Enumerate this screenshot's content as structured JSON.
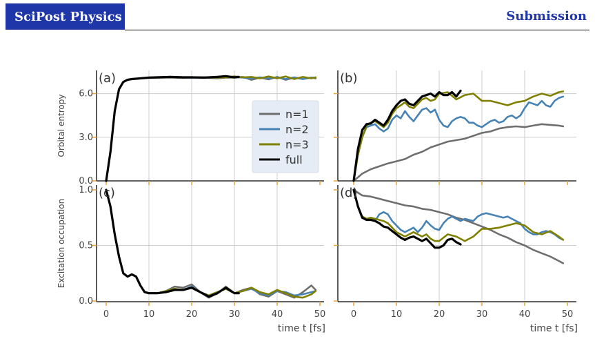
{
  "header": {
    "journal": "SciPost Physics",
    "section": "Submission"
  },
  "colors": {
    "n1": "#6e6e6e",
    "n2": "#4682b4",
    "n3": "#808000",
    "full": "#000000"
  },
  "chart_data": [
    {
      "panel": "(a)",
      "type": "line",
      "ylabel": "Orbital entropy",
      "ylim": [
        0,
        7.5
      ],
      "yticks": [
        "0.0",
        "3.0",
        "6.0"
      ],
      "xlim": [
        0,
        50
      ],
      "series": [
        {
          "name": "n=1",
          "x": [
            0,
            1,
            2,
            3,
            4,
            5,
            6,
            8,
            10,
            12,
            15,
            18,
            20,
            23,
            26,
            28,
            30,
            32,
            34,
            36,
            38,
            40,
            42,
            44,
            46,
            48,
            49
          ],
          "y": [
            0,
            2,
            4.8,
            6.3,
            6.8,
            6.95,
            7.0,
            7.05,
            7.08,
            7.1,
            7.1,
            7.08,
            7.1,
            7.1,
            7.05,
            7.1,
            7.1,
            7.15,
            6.95,
            7.1,
            6.98,
            7.15,
            6.95,
            7.1,
            7.0,
            7.1,
            7.05
          ]
        },
        {
          "name": "n=2",
          "x": [
            0,
            1,
            2,
            3,
            4,
            5,
            6,
            8,
            10,
            12,
            15,
            18,
            20,
            23,
            26,
            28,
            30,
            32,
            34,
            36,
            38,
            40,
            42,
            44,
            46,
            48,
            49
          ],
          "y": [
            0,
            2,
            4.8,
            6.3,
            6.8,
            6.95,
            7.0,
            7.05,
            7.1,
            7.1,
            7.12,
            7.1,
            7.1,
            7.12,
            7.1,
            7.12,
            7.15,
            7.1,
            7.05,
            7.12,
            7.05,
            7.12,
            7.0,
            7.12,
            7.0,
            7.1,
            7.1
          ]
        },
        {
          "name": "n=3",
          "x": [
            0,
            1,
            2,
            3,
            4,
            5,
            6,
            8,
            10,
            12,
            15,
            18,
            20,
            23,
            26,
            28,
            30,
            32,
            34,
            36,
            38,
            40,
            42,
            44,
            46,
            48,
            49
          ],
          "y": [
            0,
            2,
            4.8,
            6.3,
            6.8,
            6.95,
            7.0,
            7.05,
            7.1,
            7.1,
            7.12,
            7.1,
            7.12,
            7.12,
            7.1,
            7.12,
            7.18,
            7.12,
            7.15,
            7.05,
            7.18,
            7.05,
            7.18,
            7.0,
            7.15,
            7.05,
            7.12
          ]
        },
        {
          "name": "full",
          "x": [
            0,
            1,
            2,
            3,
            4,
            5,
            6,
            8,
            10,
            12,
            15,
            18,
            20,
            23,
            26,
            28,
            30,
            31
          ],
          "y": [
            0,
            2,
            4.8,
            6.3,
            6.8,
            6.95,
            7.0,
            7.05,
            7.1,
            7.12,
            7.15,
            7.12,
            7.12,
            7.1,
            7.15,
            7.2,
            7.12,
            7.15
          ]
        }
      ]
    },
    {
      "panel": "(b)",
      "type": "line",
      "ylim": [
        0,
        7.5
      ],
      "xlim": [
        0,
        50
      ],
      "series": [
        {
          "name": "n=1",
          "x": [
            0,
            2,
            4,
            6,
            8,
            10,
            12,
            14,
            16,
            18,
            20,
            22,
            24,
            26,
            28,
            30,
            32,
            34,
            36,
            38,
            40,
            42,
            44,
            46,
            48,
            49
          ],
          "y": [
            0,
            0.5,
            0.8,
            1.0,
            1.2,
            1.35,
            1.5,
            1.8,
            2.0,
            2.3,
            2.5,
            2.7,
            2.8,
            2.9,
            3.1,
            3.3,
            3.4,
            3.6,
            3.7,
            3.75,
            3.7,
            3.8,
            3.9,
            3.85,
            3.8,
            3.75
          ]
        },
        {
          "name": "n=2",
          "x": [
            0,
            1,
            2,
            3,
            4,
            5,
            6,
            7,
            8,
            9,
            10,
            11,
            12,
            13,
            14,
            15,
            16,
            17,
            18,
            19,
            20,
            21,
            22,
            23,
            24,
            25,
            26,
            27,
            28,
            29,
            30,
            31,
            32,
            33,
            34,
            35,
            36,
            37,
            38,
            39,
            40,
            41,
            42,
            43,
            44,
            45,
            46,
            47,
            48,
            49
          ],
          "y": [
            0,
            1.8,
            3.0,
            3.7,
            3.8,
            3.9,
            3.6,
            3.4,
            3.6,
            4.2,
            4.5,
            4.3,
            4.8,
            4.4,
            4.1,
            4.5,
            4.9,
            5.0,
            4.7,
            4.9,
            4.2,
            3.8,
            3.7,
            4.1,
            4.3,
            4.4,
            4.3,
            4.0,
            4.0,
            3.8,
            3.7,
            3.9,
            4.1,
            4.2,
            4.0,
            4.1,
            4.4,
            4.5,
            4.3,
            4.5,
            5.0,
            5.4,
            5.3,
            5.2,
            5.5,
            5.2,
            5.1,
            5.5,
            5.7,
            5.8
          ]
        },
        {
          "name": "n=3",
          "x": [
            0,
            1,
            2,
            3,
            4,
            5,
            6,
            7,
            8,
            9,
            10,
            11,
            12,
            13,
            14,
            15,
            16,
            17,
            18,
            19,
            20,
            22,
            24,
            26,
            28,
            30,
            32,
            34,
            36,
            38,
            40,
            42,
            44,
            46,
            48,
            49
          ],
          "y": [
            0,
            1.8,
            3.0,
            3.8,
            4.0,
            4.1,
            3.9,
            3.7,
            4.0,
            4.6,
            5.0,
            5.2,
            5.4,
            5.1,
            5.0,
            5.3,
            5.6,
            5.7,
            5.5,
            5.6,
            6.0,
            6.1,
            5.6,
            5.9,
            6.0,
            5.5,
            5.5,
            5.35,
            5.2,
            5.4,
            5.5,
            5.8,
            6.0,
            5.85,
            6.1,
            6.15
          ]
        },
        {
          "name": "full",
          "x": [
            0,
            1,
            2,
            3,
            4,
            5,
            6,
            7,
            8,
            9,
            10,
            11,
            12,
            13,
            14,
            15,
            16,
            17,
            18,
            19,
            20,
            21,
            22,
            23,
            24,
            25
          ],
          "y": [
            0,
            2.2,
            3.5,
            3.9,
            3.95,
            4.2,
            4.0,
            3.8,
            4.2,
            4.8,
            5.2,
            5.5,
            5.6,
            5.3,
            5.2,
            5.5,
            5.8,
            5.9,
            6.0,
            5.8,
            6.1,
            5.9,
            5.9,
            6.1,
            5.8,
            6.2
          ]
        }
      ]
    },
    {
      "panel": "(c)",
      "type": "line",
      "ylabel": "Excitation occupation",
      "ylim": [
        0,
        1.0
      ],
      "yticks": [
        "0.0",
        "0.5",
        "1.0"
      ],
      "xlim": [
        0,
        50
      ],
      "xticks": [
        "0",
        "10",
        "20",
        "30",
        "40",
        "50"
      ],
      "xlabel": "time t [fs]",
      "series": [
        {
          "name": "n=1",
          "x": [
            0,
            1,
            2,
            3,
            4,
            5,
            6,
            7,
            8,
            9,
            10,
            12,
            14,
            16,
            18,
            20,
            22,
            24,
            26,
            28,
            30,
            32,
            34,
            36,
            38,
            40,
            42,
            44,
            46,
            48,
            49
          ],
          "y": [
            1.0,
            0.85,
            0.6,
            0.4,
            0.25,
            0.22,
            0.24,
            0.22,
            0.14,
            0.08,
            0.07,
            0.07,
            0.09,
            0.13,
            0.12,
            0.15,
            0.08,
            0.03,
            0.07,
            0.13,
            0.07,
            0.1,
            0.12,
            0.06,
            0.04,
            0.09,
            0.06,
            0.03,
            0.08,
            0.14,
            0.1
          ]
        },
        {
          "name": "n=2",
          "x": [
            0,
            1,
            2,
            3,
            4,
            5,
            6,
            7,
            8,
            9,
            10,
            12,
            14,
            16,
            18,
            20,
            22,
            24,
            26,
            28,
            30,
            32,
            34,
            36,
            38,
            40,
            42,
            44,
            46,
            48,
            49
          ],
          "y": [
            1.0,
            0.85,
            0.6,
            0.4,
            0.25,
            0.22,
            0.24,
            0.22,
            0.14,
            0.08,
            0.07,
            0.07,
            0.09,
            0.11,
            0.1,
            0.13,
            0.08,
            0.05,
            0.08,
            0.11,
            0.07,
            0.09,
            0.11,
            0.07,
            0.05,
            0.09,
            0.08,
            0.05,
            0.06,
            0.08,
            0.09
          ]
        },
        {
          "name": "n=3",
          "x": [
            0,
            1,
            2,
            3,
            4,
            5,
            6,
            7,
            8,
            9,
            10,
            12,
            14,
            16,
            18,
            20,
            22,
            24,
            26,
            28,
            30,
            32,
            34,
            36,
            38,
            40,
            42,
            44,
            46,
            48,
            49
          ],
          "y": [
            1.0,
            0.85,
            0.6,
            0.4,
            0.25,
            0.22,
            0.24,
            0.22,
            0.14,
            0.08,
            0.07,
            0.07,
            0.09,
            0.11,
            0.1,
            0.12,
            0.08,
            0.05,
            0.08,
            0.11,
            0.07,
            0.09,
            0.12,
            0.08,
            0.06,
            0.1,
            0.07,
            0.04,
            0.03,
            0.06,
            0.09
          ]
        },
        {
          "name": "full",
          "x": [
            0,
            1,
            2,
            3,
            4,
            5,
            6,
            7,
            8,
            9,
            10,
            12,
            14,
            16,
            18,
            20,
            22,
            24,
            26,
            28,
            30,
            31
          ],
          "y": [
            1.0,
            0.85,
            0.6,
            0.4,
            0.25,
            0.22,
            0.24,
            0.22,
            0.14,
            0.08,
            0.07,
            0.07,
            0.08,
            0.1,
            0.1,
            0.12,
            0.08,
            0.04,
            0.07,
            0.12,
            0.07,
            0.07
          ]
        }
      ]
    },
    {
      "panel": "(d)",
      "type": "line",
      "ylim": [
        0,
        1.0
      ],
      "xlim": [
        0,
        50
      ],
      "xticks": [
        "0",
        "10",
        "20",
        "30",
        "40",
        "50"
      ],
      "xlabel": "time t [fs]",
      "series": [
        {
          "name": "n=1",
          "x": [
            0,
            2,
            4,
            6,
            8,
            10,
            12,
            14,
            16,
            18,
            20,
            22,
            24,
            26,
            28,
            30,
            32,
            34,
            36,
            38,
            40,
            42,
            44,
            46,
            48,
            49
          ],
          "y": [
            1.0,
            0.95,
            0.94,
            0.92,
            0.9,
            0.88,
            0.86,
            0.85,
            0.83,
            0.82,
            0.8,
            0.78,
            0.75,
            0.73,
            0.7,
            0.67,
            0.64,
            0.6,
            0.57,
            0.53,
            0.5,
            0.46,
            0.43,
            0.4,
            0.36,
            0.34
          ]
        },
        {
          "name": "n=2",
          "x": [
            0,
            1,
            2,
            3,
            4,
            5,
            6,
            7,
            8,
            9,
            10,
            11,
            12,
            13,
            14,
            15,
            16,
            17,
            18,
            19,
            20,
            21,
            22,
            23,
            24,
            25,
            26,
            27,
            28,
            29,
            30,
            31,
            32,
            33,
            34,
            35,
            36,
            37,
            38,
            39,
            40,
            41,
            42,
            43,
            44,
            45,
            46,
            47,
            48,
            49
          ],
          "y": [
            1.0,
            0.85,
            0.76,
            0.74,
            0.75,
            0.72,
            0.78,
            0.8,
            0.78,
            0.72,
            0.68,
            0.64,
            0.62,
            0.64,
            0.66,
            0.62,
            0.66,
            0.72,
            0.68,
            0.65,
            0.64,
            0.7,
            0.74,
            0.76,
            0.74,
            0.72,
            0.74,
            0.73,
            0.72,
            0.76,
            0.78,
            0.79,
            0.78,
            0.77,
            0.76,
            0.75,
            0.76,
            0.74,
            0.72,
            0.7,
            0.65,
            0.62,
            0.6,
            0.6,
            0.62,
            0.63,
            0.62,
            0.6,
            0.57,
            0.55
          ]
        },
        {
          "name": "n=3",
          "x": [
            0,
            1,
            2,
            3,
            4,
            5,
            6,
            7,
            8,
            9,
            10,
            11,
            12,
            13,
            14,
            15,
            16,
            17,
            18,
            19,
            20,
            22,
            24,
            26,
            28,
            30,
            32,
            34,
            36,
            38,
            40,
            42,
            44,
            46,
            48,
            49
          ],
          "y": [
            1.0,
            0.85,
            0.76,
            0.74,
            0.75,
            0.74,
            0.73,
            0.72,
            0.7,
            0.66,
            0.62,
            0.6,
            0.58,
            0.6,
            0.62,
            0.6,
            0.58,
            0.6,
            0.56,
            0.54,
            0.54,
            0.6,
            0.58,
            0.54,
            0.58,
            0.65,
            0.65,
            0.66,
            0.68,
            0.7,
            0.68,
            0.62,
            0.6,
            0.63,
            0.58,
            0.55
          ]
        },
        {
          "name": "full",
          "x": [
            0,
            1,
            2,
            3,
            4,
            5,
            6,
            7,
            8,
            9,
            10,
            11,
            12,
            13,
            14,
            15,
            16,
            17,
            18,
            19,
            20,
            21,
            22,
            23,
            24,
            25
          ],
          "y": [
            1.0,
            0.85,
            0.75,
            0.73,
            0.73,
            0.72,
            0.7,
            0.67,
            0.66,
            0.63,
            0.6,
            0.57,
            0.55,
            0.57,
            0.58,
            0.56,
            0.54,
            0.56,
            0.52,
            0.48,
            0.48,
            0.5,
            0.55,
            0.56,
            0.53,
            0.51
          ]
        }
      ]
    }
  ],
  "legend": [
    {
      "label": "n=1",
      "color": "#6e6e6e"
    },
    {
      "label": "n=2",
      "color": "#4682b4"
    },
    {
      "label": "n=3",
      "color": "#808000"
    },
    {
      "label": "full",
      "color": "#000000"
    }
  ]
}
